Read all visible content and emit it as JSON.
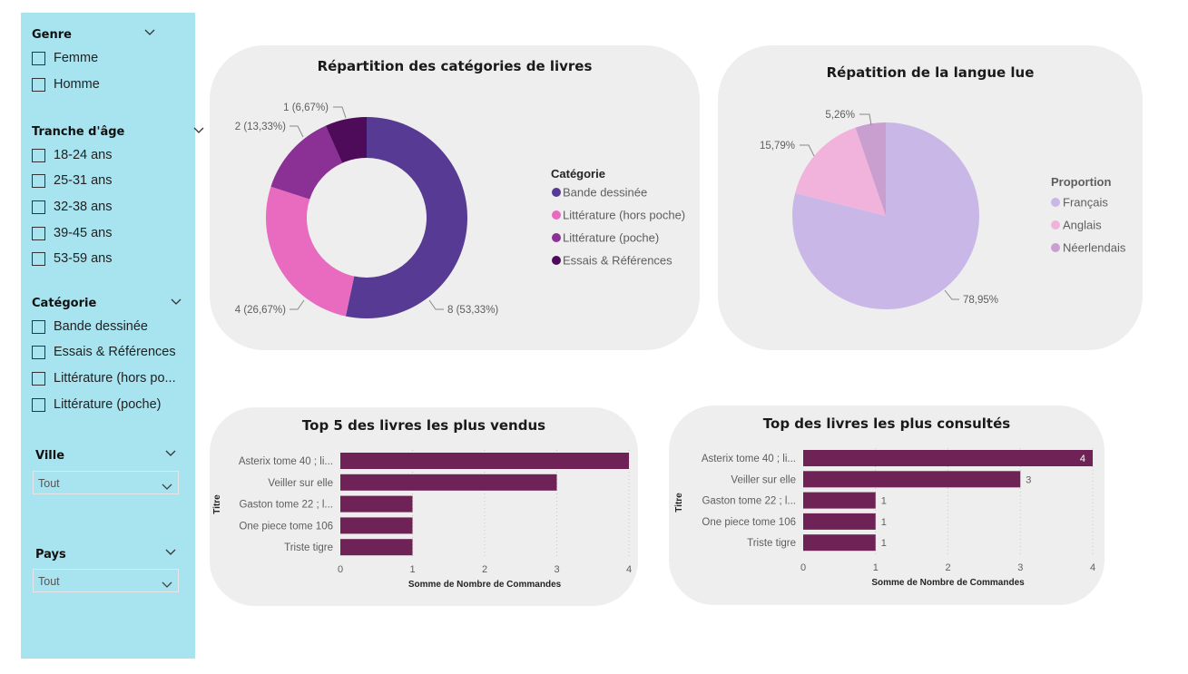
{
  "slicers": {
    "genre": {
      "title": "Genre",
      "options": [
        "Femme",
        "Homme"
      ]
    },
    "age": {
      "title": "Tranche d'âge",
      "options": [
        "18-24 ans",
        "25-31 ans",
        "32-38 ans",
        "39-45 ans",
        "53-59 ans"
      ]
    },
    "categorie": {
      "title": "Catégorie",
      "options": [
        "Bande dessinée",
        "Essais & Références",
        "Littérature (hors po...",
        "Littérature (poche)"
      ]
    },
    "ville": {
      "title": "Ville",
      "value": "Tout"
    },
    "pays": {
      "title": "Pays",
      "value": "Tout"
    }
  },
  "chart_data": [
    {
      "type": "pie",
      "variant": "donut",
      "title": "Répartition des catégories de livres",
      "legend_title": "Catégorie",
      "legend_position": "right",
      "labels": [
        "Bande dessinée",
        "Littérature (hors poche)",
        "Littérature (poche)",
        "Essais & Références"
      ],
      "values": [
        8,
        4,
        2,
        1
      ],
      "data_labels": [
        "8 (53,33%)",
        "4 (26,67%)",
        "2 (13,33%)",
        "1 (6,67%)"
      ],
      "colors": [
        "#563a93",
        "#e86bbf",
        "#8b3095",
        "#4e0b5a"
      ]
    },
    {
      "type": "pie",
      "title": "Répatition de la langue lue",
      "legend_title": "Proportion",
      "legend_position": "right",
      "labels": [
        "Français",
        "Anglais",
        "Néerlendais"
      ],
      "values": [
        78.95,
        15.79,
        5.26
      ],
      "data_labels": [
        "78,95%",
        "15,79%",
        "5,26%"
      ],
      "colors": [
        "#c9b8e7",
        "#f1b3dc",
        "#c99fd0"
      ]
    },
    {
      "type": "bar",
      "orientation": "horizontal",
      "title": "Top 5 des livres les plus vendus",
      "xlabel": "Somme de Nombre de Commandes",
      "ylabel": "Titre",
      "categories": [
        "Asterix tome 40 ; li...",
        "Veiller sur elle",
        "Gaston tome 22 ; l...",
        "One piece tome 106",
        "Triste tigre"
      ],
      "values": [
        4,
        3,
        1,
        1,
        1
      ],
      "xlim": [
        0,
        4
      ],
      "xticks": [
        "0",
        "1",
        "2",
        "3",
        "4"
      ],
      "show_data_labels": false,
      "color": "#6e2255"
    },
    {
      "type": "bar",
      "orientation": "horizontal",
      "title": "Top des livres les plus consultés",
      "xlabel": "Somme de Nombre de Commandes",
      "ylabel": "Titre",
      "categories": [
        "Asterix tome 40 ; li...",
        "Veiller sur elle",
        "Gaston tome 22 ; l...",
        "One piece tome 106",
        "Triste tigre"
      ],
      "values": [
        4,
        3,
        1,
        1,
        1
      ],
      "data_labels": [
        "4",
        "3",
        "1",
        "1",
        "1"
      ],
      "xlim": [
        0,
        4
      ],
      "xticks": [
        "0",
        "1",
        "2",
        "3",
        "4"
      ],
      "show_data_labels": true,
      "color": "#6e2255"
    }
  ]
}
